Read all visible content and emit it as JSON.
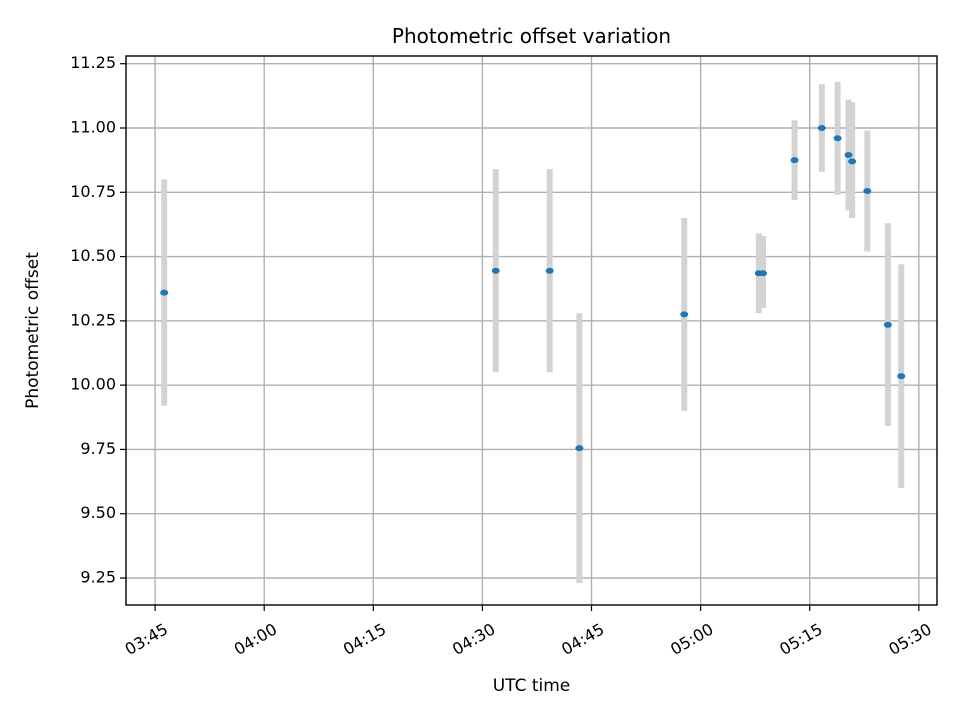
{
  "chart_data": {
    "type": "scatter",
    "title": "Photometric offset variation",
    "xlabel": "UTC time",
    "ylabel": "Photometric offset",
    "x_ticks": [
      "03:45",
      "04:00",
      "04:15",
      "04:30",
      "04:45",
      "05:00",
      "05:15",
      "05:30"
    ],
    "y_ticks": [
      "9.25",
      "9.50",
      "9.75",
      "10.00",
      "10.25",
      "10.50",
      "10.75",
      "11.00",
      "11.25"
    ],
    "xlim": [
      "03:41:00",
      "05:32:30"
    ],
    "ylim": [
      9.145,
      11.28
    ],
    "grid": true,
    "series": [
      {
        "color": "#1f77b4",
        "errorbar_color": "#d3d3d3",
        "points": [
          {
            "x": "03:46:15",
            "y": 10.36,
            "yerr_low": 9.92,
            "yerr_high": 10.8
          },
          {
            "x": "04:31:50",
            "y": 10.445,
            "yerr_low": 10.05,
            "yerr_high": 10.84
          },
          {
            "x": "04:39:15",
            "y": 10.445,
            "yerr_low": 10.05,
            "yerr_high": 10.84
          },
          {
            "x": "04:43:20",
            "y": 9.755,
            "yerr_low": 9.23,
            "yerr_high": 10.28
          },
          {
            "x": "04:57:45",
            "y": 10.275,
            "yerr_low": 9.9,
            "yerr_high": 10.65
          },
          {
            "x": "05:08:00",
            "y": 10.435,
            "yerr_low": 10.28,
            "yerr_high": 10.59
          },
          {
            "x": "05:08:35",
            "y": 10.435,
            "yerr_low": 10.3,
            "yerr_high": 10.58
          },
          {
            "x": "05:12:55",
            "y": 10.875,
            "yerr_low": 10.72,
            "yerr_high": 11.03
          },
          {
            "x": "05:16:40",
            "y": 11.0,
            "yerr_low": 10.83,
            "yerr_high": 11.17
          },
          {
            "x": "05:18:50",
            "y": 10.96,
            "yerr_low": 10.74,
            "yerr_high": 11.18
          },
          {
            "x": "05:20:20",
            "y": 10.895,
            "yerr_low": 10.68,
            "yerr_high": 11.11
          },
          {
            "x": "05:20:50",
            "y": 10.87,
            "yerr_low": 10.65,
            "yerr_high": 11.1
          },
          {
            "x": "05:22:55",
            "y": 10.755,
            "yerr_low": 10.52,
            "yerr_high": 10.99
          },
          {
            "x": "05:25:45",
            "y": 10.235,
            "yerr_low": 9.84,
            "yerr_high": 10.63
          },
          {
            "x": "05:27:35",
            "y": 10.035,
            "yerr_low": 9.6,
            "yerr_high": 10.47
          }
        ]
      }
    ]
  }
}
